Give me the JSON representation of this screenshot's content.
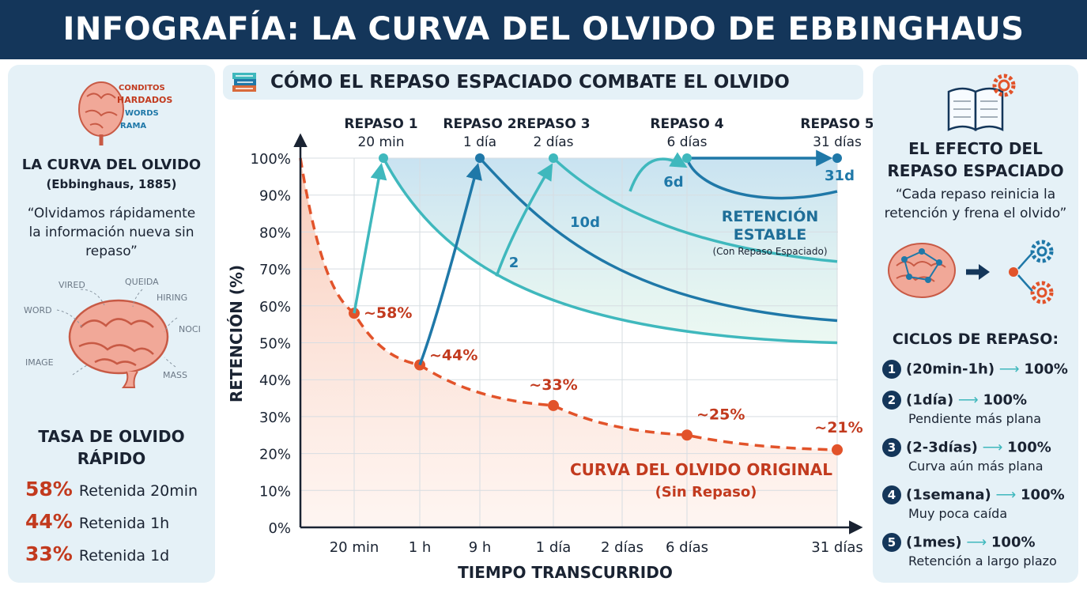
{
  "title": "INFOGRAFÍA: LA CURVA DEL OLVIDO DE EBBINGHAUS",
  "subtitle": "CÓMO EL REPASO ESPACIADO COMBATE EL OLVIDO",
  "left": {
    "brain_words_top": [
      "CONDITOS",
      "HARDADOS",
      "WORDS",
      "RAMA"
    ],
    "heading": "LA CURVA DEL OLVIDO",
    "citation": "(Ebbinghaus, 1885)",
    "quote": "“Olvidamos rápidamente la información nueva sin repaso”",
    "brain_words": [
      "VIRED",
      "QUEIDA",
      "HIRING",
      "WORD",
      "NOCI",
      "IMAGE",
      "MASS"
    ],
    "rate_heading": "TASA DE OLVIDO RÁPIDO",
    "stats": [
      {
        "pct": "58%",
        "label": "Retenida 20min"
      },
      {
        "pct": "44%",
        "label": "Retenida 1h"
      },
      {
        "pct": "33%",
        "label": "Retenida 1d"
      }
    ]
  },
  "right": {
    "heading": "EL EFECTO DEL REPASO ESPACIADO",
    "quote": "“Cada repaso reinicia la retención y frena el olvido”",
    "cycles_heading": "CICLOS DE REPASO:",
    "cycles": [
      {
        "num": "1",
        "title": "(20min-1h)",
        "result": "100%",
        "note": ""
      },
      {
        "num": "2",
        "title": "(1día)",
        "result": "100%",
        "note": "Pendiente más plana"
      },
      {
        "num": "3",
        "title": "(2-3días)",
        "result": "100%",
        "note": "Curva aún más plana"
      },
      {
        "num": "4",
        "title": "(1semana)",
        "result": "100%",
        "note": "Muy poca caída"
      },
      {
        "num": "5",
        "title": "(1mes)",
        "result": "100%",
        "note": "Retención a largo plazo"
      }
    ]
  },
  "chart_data": {
    "type": "line",
    "ylabel": "RETENCIÓN (%)",
    "xlabel": "TIEMPO TRANSCURRIDO",
    "ylim": [
      0,
      100
    ],
    "yticks": [
      "0%",
      "10%",
      "20%",
      "30%",
      "40%",
      "50%",
      "60%",
      "70%",
      "80%",
      "90%",
      "100%"
    ],
    "x_categories": [
      "20 min",
      "1 h",
      "9 h",
      "1 día",
      "2 días",
      "6 días",
      "31 días"
    ],
    "grid": true,
    "reviews": [
      {
        "label": "REPASO 1",
        "time": "20 min",
        "start_y": 58,
        "end_y": 100,
        "asymptote": 50
      },
      {
        "label": "REPASO 2",
        "time": "1 día",
        "start_y": 44,
        "end_y": 100,
        "asymptote": 56
      },
      {
        "label": "REPASO 3",
        "time": "2 días",
        "start_y": 68,
        "end_y": 100,
        "asymptote": 72
      },
      {
        "label": "REPASO 4",
        "time": "6 días",
        "start_y": 91,
        "end_y": 100,
        "asymptote": 83
      },
      {
        "label": "REPASO 5",
        "time": "31 días",
        "start_y": 100,
        "end_y": 100,
        "asymptote": 91
      }
    ],
    "gap_labels": [
      "2",
      "10d",
      "6d",
      "31d"
    ],
    "series": [
      {
        "name": "CURVA DEL OLVIDO ORIGINAL",
        "name_note": "(Sin Repaso)",
        "points": [
          {
            "x": 0,
            "y": 100,
            "label": ""
          },
          {
            "x": "20 min",
            "y": 58,
            "label": "~58%"
          },
          {
            "x": "1 h",
            "y": 44,
            "label": "~44%"
          },
          {
            "x": "1 día",
            "y": 33,
            "label": "~33%"
          },
          {
            "x": "6 días",
            "y": 25,
            "label": "~25%"
          },
          {
            "x": "31 días",
            "y": 21,
            "label": "~21%"
          }
        ]
      }
    ],
    "stable_label": "RETENCIÓN ESTABLE",
    "stable_note": "(Con Repaso Espaciado)"
  },
  "colors": {
    "banner": "#14365a",
    "panel": "#e5f1f7",
    "forgetting": "#e2532a",
    "teal": "#3fb8bd",
    "blue": "#1f78a8",
    "accent_red": "#c23a1e"
  }
}
